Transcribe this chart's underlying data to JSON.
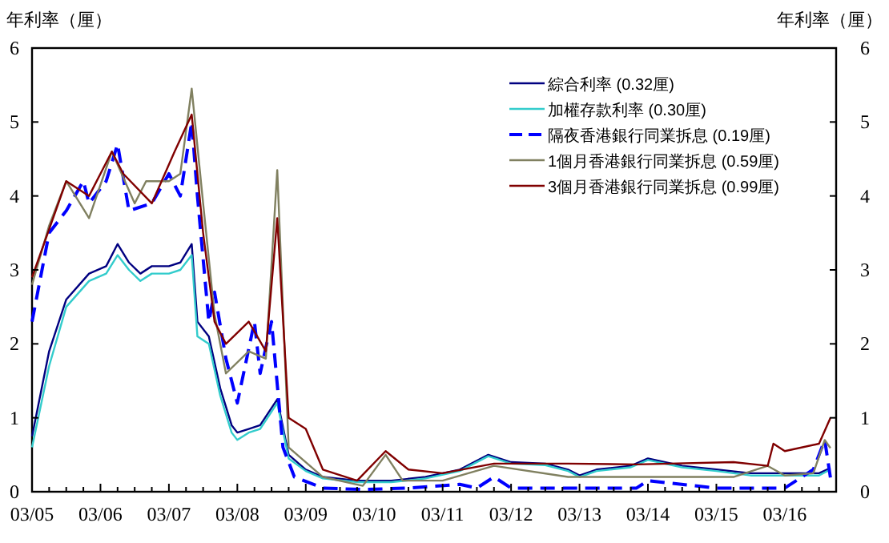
{
  "chart_data": {
    "type": "line",
    "ylabel": "年利率（厘）",
    "y2label": "年利率（厘）",
    "legend": "top right",
    "grid": false,
    "xlim": [
      "2005-03",
      "2016-12"
    ],
    "xticks": [
      {
        "value": "2005-03",
        "label": "03/05"
      },
      {
        "value": "2005-06",
        "label": null
      },
      {
        "value": "2005-09",
        "label": null
      },
      {
        "value": "2005-12",
        "label": null
      },
      {
        "value": "2006-03",
        "label": "03/06"
      },
      {
        "value": "2006-06",
        "label": null
      },
      {
        "value": "2006-09",
        "label": null
      },
      {
        "value": "2006-12",
        "label": null
      },
      {
        "value": "2007-03",
        "label": "03/07"
      },
      {
        "value": "2007-06",
        "label": null
      },
      {
        "value": "2007-09",
        "label": null
      },
      {
        "value": "2007-12",
        "label": null
      },
      {
        "value": "2008-03",
        "label": "03/08"
      },
      {
        "value": "2008-06",
        "label": null
      },
      {
        "value": "2008-09",
        "label": null
      },
      {
        "value": "2008-12",
        "label": null
      },
      {
        "value": "2009-03",
        "label": "03/09"
      },
      {
        "value": "2009-06",
        "label": null
      },
      {
        "value": "2009-09",
        "label": null
      },
      {
        "value": "2009-12",
        "label": null
      },
      {
        "value": "2010-03",
        "label": "03/10"
      },
      {
        "value": "2010-06",
        "label": null
      },
      {
        "value": "2010-09",
        "label": null
      },
      {
        "value": "2010-12",
        "label": null
      },
      {
        "value": "2011-03",
        "label": "03/11"
      },
      {
        "value": "2011-06",
        "label": null
      },
      {
        "value": "2011-09",
        "label": null
      },
      {
        "value": "2011-12",
        "label": null
      },
      {
        "value": "2012-03",
        "label": "03/12"
      },
      {
        "value": "2012-06",
        "label": null
      },
      {
        "value": "2012-09",
        "label": null
      },
      {
        "value": "2012-12",
        "label": null
      },
      {
        "value": "2013-03",
        "label": "03/13"
      },
      {
        "value": "2013-06",
        "label": null
      },
      {
        "value": "2013-09",
        "label": null
      },
      {
        "value": "2013-12",
        "label": null
      },
      {
        "value": "2014-03",
        "label": "03/14"
      },
      {
        "value": "2014-06",
        "label": null
      },
      {
        "value": "2014-09",
        "label": null
      },
      {
        "value": "2014-12",
        "label": null
      },
      {
        "value": "2015-03",
        "label": "03/15"
      },
      {
        "value": "2015-06",
        "label": null
      },
      {
        "value": "2015-09",
        "label": null
      },
      {
        "value": "2015-12",
        "label": null
      },
      {
        "value": "2016-03",
        "label": "03/16"
      },
      {
        "value": "2016-06",
        "label": null
      },
      {
        "value": "2016-09",
        "label": null
      }
    ],
    "ylim": [
      0,
      6
    ],
    "yticks": [
      0,
      1,
      2,
      3,
      4,
      5,
      6
    ],
    "y2lim": [
      0,
      6
    ],
    "y2ticks": [
      0,
      1,
      2,
      3,
      4,
      5,
      6
    ],
    "series": [
      {
        "name": "綜合利率 (0.32厘)",
        "color": "#000080",
        "x": [
          "2005-03",
          "2005-06",
          "2005-09",
          "2006-01",
          "2006-04",
          "2006-06",
          "2006-08",
          "2006-10",
          "2006-12",
          "2007-03",
          "2007-05",
          "2007-07",
          "2007-08",
          "2007-10",
          "2007-12",
          "2008-02",
          "2008-03",
          "2008-05",
          "2008-07",
          "2008-10",
          "2008-12",
          "2009-03",
          "2009-06",
          "2009-12",
          "2010-06",
          "2010-12",
          "2011-06",
          "2011-11",
          "2012-03",
          "2012-09",
          "2013-01",
          "2013-03",
          "2013-06",
          "2013-12",
          "2014-03",
          "2014-09",
          "2015-03",
          "2015-09",
          "2016-03",
          "2016-09",
          "2016-11"
        ],
        "values": [
          0.75,
          1.9,
          2.6,
          2.95,
          3.05,
          3.35,
          3.1,
          2.95,
          3.05,
          3.05,
          3.1,
          3.35,
          2.3,
          2.1,
          1.4,
          0.9,
          0.8,
          0.85,
          0.9,
          1.25,
          0.5,
          0.3,
          0.2,
          0.15,
          0.15,
          0.2,
          0.3,
          0.5,
          0.4,
          0.38,
          0.3,
          0.22,
          0.3,
          0.35,
          0.45,
          0.35,
          0.3,
          0.25,
          0.25,
          0.25,
          0.32
        ]
      },
      {
        "name": "加權存款利率 (0.30厘)",
        "color": "#33cccc",
        "x": [
          "2005-03",
          "2005-06",
          "2005-09",
          "2006-01",
          "2006-04",
          "2006-06",
          "2006-08",
          "2006-10",
          "2006-12",
          "2007-03",
          "2007-05",
          "2007-07",
          "2007-08",
          "2007-10",
          "2007-12",
          "2008-02",
          "2008-03",
          "2008-05",
          "2008-07",
          "2008-10",
          "2008-12",
          "2009-03",
          "2009-06",
          "2009-12",
          "2010-06",
          "2010-12",
          "2011-06",
          "2011-11",
          "2012-03",
          "2012-09",
          "2013-01",
          "2013-03",
          "2013-06",
          "2013-12",
          "2014-03",
          "2014-09",
          "2015-03",
          "2015-09",
          "2016-03",
          "2016-09",
          "2016-11"
        ],
        "values": [
          0.6,
          1.7,
          2.5,
          2.85,
          2.95,
          3.2,
          3.0,
          2.85,
          2.95,
          2.95,
          3.0,
          3.2,
          2.1,
          2.0,
          1.3,
          0.8,
          0.7,
          0.8,
          0.85,
          1.2,
          0.45,
          0.28,
          0.18,
          0.13,
          0.13,
          0.18,
          0.28,
          0.48,
          0.38,
          0.36,
          0.28,
          0.2,
          0.28,
          0.33,
          0.43,
          0.33,
          0.28,
          0.22,
          0.22,
          0.22,
          0.3
        ]
      },
      {
        "name": "隔夜香港銀行同業拆息 (0.19厘)",
        "color": "#0000ff",
        "line_style": "dashed",
        "x": [
          "2005-03",
          "2005-06",
          "2005-09",
          "2005-12",
          "2006-01",
          "2006-04",
          "2006-06",
          "2006-08",
          "2006-12",
          "2007-03",
          "2007-05",
          "2007-07",
          "2007-08",
          "2007-10",
          "2007-11",
          "2008-01",
          "2008-03",
          "2008-06",
          "2008-07",
          "2008-09",
          "2008-11",
          "2009-01",
          "2009-06",
          "2010-01",
          "2010-09",
          "2011-06",
          "2011-09",
          "2011-12",
          "2012-03",
          "2013-01",
          "2014-01",
          "2014-03",
          "2015-03",
          "2016-03",
          "2016-08",
          "2016-10",
          "2016-11"
        ],
        "values": [
          2.3,
          3.5,
          3.8,
          4.2,
          3.9,
          4.2,
          4.7,
          3.8,
          3.9,
          4.3,
          4.0,
          5.0,
          4.0,
          2.3,
          2.7,
          1.8,
          1.2,
          2.3,
          1.6,
          2.3,
          0.6,
          0.2,
          0.05,
          0.03,
          0.05,
          0.1,
          0.05,
          0.2,
          0.05,
          0.05,
          0.05,
          0.15,
          0.05,
          0.05,
          0.3,
          0.7,
          0.19
        ]
      },
      {
        "name": "1個月香港銀行同業拆息 (0.59厘)",
        "color": "#808060",
        "x": [
          "2005-03",
          "2005-06",
          "2005-09",
          "2006-01",
          "2006-05",
          "2006-09",
          "2006-11",
          "2007-03",
          "2007-05",
          "2007-07",
          "2007-09",
          "2007-11",
          "2008-01",
          "2008-05",
          "2008-08",
          "2008-10",
          "2008-12",
          "2009-06",
          "2010-01",
          "2010-05",
          "2010-08",
          "2011-03",
          "2011-12",
          "2013-01",
          "2015-06",
          "2015-12",
          "2016-03",
          "2016-08",
          "2016-10",
          "2016-11"
        ],
        "values": [
          2.8,
          3.6,
          4.2,
          3.7,
          4.6,
          3.9,
          4.2,
          4.2,
          4.3,
          5.45,
          3.9,
          2.4,
          1.6,
          1.9,
          1.8,
          4.35,
          0.6,
          0.2,
          0.08,
          0.5,
          0.15,
          0.15,
          0.35,
          0.2,
          0.2,
          0.35,
          0.22,
          0.25,
          0.7,
          0.59
        ]
      },
      {
        "name": "3個月香港銀行同業拆息 (0.99厘)",
        "color": "#800000",
        "x": [
          "2005-03",
          "2005-09",
          "2006-01",
          "2006-05",
          "2006-07",
          "2006-12",
          "2007-04",
          "2007-07",
          "2007-09",
          "2007-11",
          "2008-01",
          "2008-05",
          "2008-08",
          "2008-10",
          "2008-12",
          "2009-03",
          "2009-06",
          "2009-12",
          "2010-05",
          "2010-09",
          "2011-03",
          "2011-12",
          "2013-01",
          "2014-01",
          "2015-06",
          "2015-12",
          "2016-01",
          "2016-03",
          "2016-09",
          "2016-11"
        ],
        "values": [
          2.9,
          4.2,
          4.0,
          4.6,
          4.3,
          3.9,
          4.6,
          5.1,
          3.5,
          2.3,
          2.0,
          2.3,
          1.9,
          3.7,
          1.0,
          0.85,
          0.3,
          0.15,
          0.55,
          0.3,
          0.25,
          0.38,
          0.38,
          0.37,
          0.4,
          0.35,
          0.65,
          0.55,
          0.65,
          1.0
        ]
      }
    ]
  }
}
